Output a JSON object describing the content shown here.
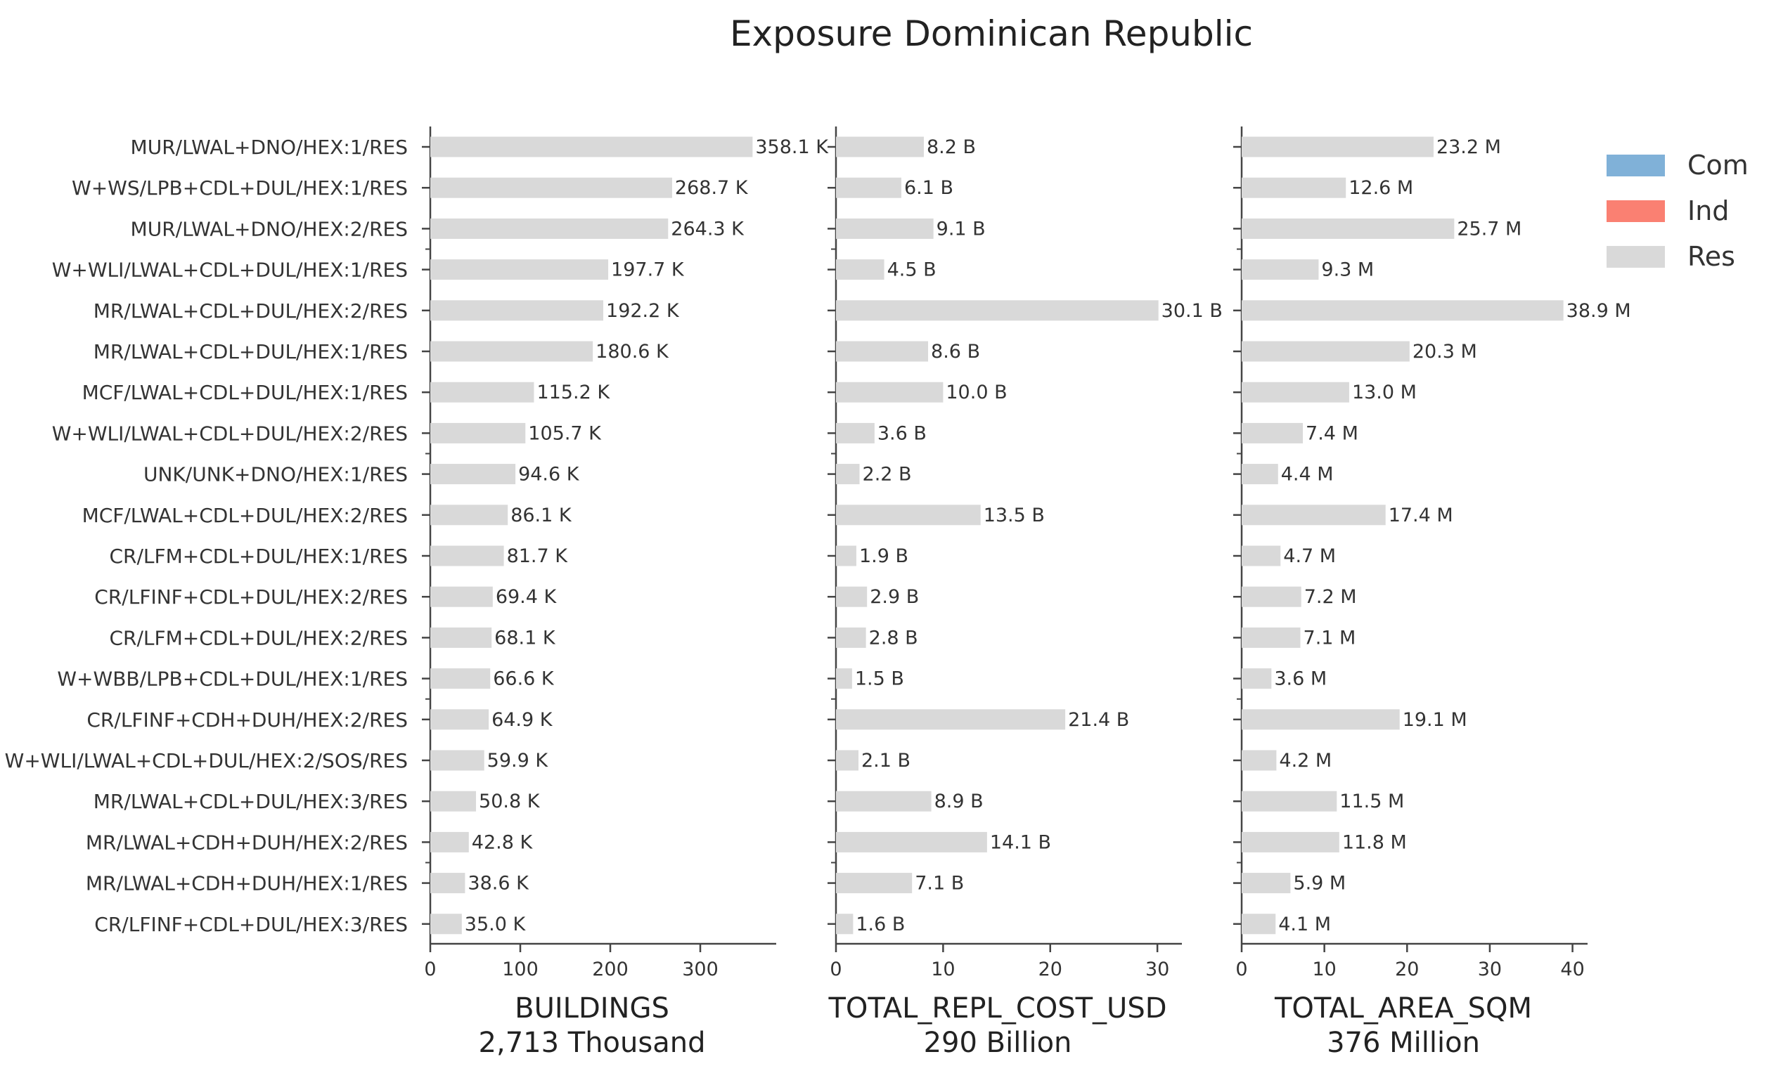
{
  "chart_data": {
    "type": "bar",
    "title": "Exposure Dominican Republic",
    "categories": [
      "MUR/LWAL+DNO/HEX:1/RES",
      "W+WS/LPB+CDL+DUL/HEX:1/RES",
      "MUR/LWAL+DNO/HEX:2/RES",
      "W+WLI/LWAL+CDL+DUL/HEX:1/RES",
      "MR/LWAL+CDL+DUL/HEX:2/RES",
      "MR/LWAL+CDL+DUL/HEX:1/RES",
      "MCF/LWAL+CDL+DUL/HEX:1/RES",
      "W+WLI/LWAL+CDL+DUL/HEX:2/RES",
      "UNK/UNK+DNO/HEX:1/RES",
      "MCF/LWAL+CDL+DUL/HEX:2/RES",
      "CR/LFM+CDL+DUL/HEX:1/RES",
      "CR/LFINF+CDL+DUL/HEX:2/RES",
      "CR/LFM+CDL+DUL/HEX:2/RES",
      "W+WBB/LPB+CDL+DUL/HEX:1/RES",
      "CR/LFINF+CDH+DUH/HEX:2/RES",
      "W+WLI/LWAL+CDL+DUL/HEX:2/SOS/RES",
      "MR/LWAL+CDL+DUL/HEX:3/RES",
      "MR/LWAL+CDH+DUH/HEX:2/RES",
      "MR/LWAL+CDH+DUH/HEX:1/RES",
      "CR/LFINF+CDL+DUL/HEX:3/RES"
    ],
    "panels": [
      {
        "metric": "BUILDINGS",
        "total": "2,713 Thousand",
        "xlim": [
          0,
          375
        ],
        "ticks": [
          0,
          100,
          200,
          300
        ],
        "values": [
          358.1,
          268.7,
          264.3,
          197.7,
          192.2,
          180.6,
          115.2,
          105.7,
          94.6,
          86.1,
          81.7,
          69.4,
          68.1,
          66.6,
          64.9,
          59.9,
          50.8,
          42.8,
          38.6,
          35.0
        ],
        "labels": [
          "358.1 K",
          "268.7 K",
          "264.3 K",
          "197.7 K",
          "192.2 K",
          "180.6 K",
          "115.2 K",
          "105.7 K",
          "94.6 K",
          "86.1 K",
          "81.7 K",
          "69.4 K",
          "68.1 K",
          "66.6 K",
          "64.9 K",
          "59.9 K",
          "50.8 K",
          "42.8 K",
          "38.6 K",
          "35.0 K"
        ]
      },
      {
        "metric": "TOTAL_REPL_COST_USD",
        "total": "290 Billion",
        "xlim": [
          0,
          31.5
        ],
        "ticks": [
          0,
          10,
          20,
          30
        ],
        "values": [
          8.2,
          6.1,
          9.1,
          4.5,
          30.1,
          8.6,
          10.0,
          3.6,
          2.2,
          13.5,
          1.9,
          2.9,
          2.8,
          1.5,
          21.4,
          2.1,
          8.9,
          14.1,
          7.1,
          1.6
        ],
        "labels": [
          "8.2 B",
          "6.1 B",
          "9.1 B",
          "4.5 B",
          "30.1 B",
          "8.6 B",
          "10.0 B",
          "3.6 B",
          "2.2 B",
          "13.5 B",
          "1.9 B",
          "2.9 B",
          "2.8 B",
          "1.5 B",
          "21.4 B",
          "2.1 B",
          "8.9 B",
          "14.1 B",
          "7.1 B",
          "1.6 B"
        ]
      },
      {
        "metric": "TOTAL_AREA_SQM",
        "total": "376 Million",
        "xlim": [
          0,
          40.8
        ],
        "ticks": [
          0,
          10,
          20,
          30,
          40
        ],
        "values": [
          23.2,
          12.6,
          25.7,
          9.3,
          38.9,
          20.3,
          13.0,
          7.4,
          4.4,
          17.4,
          4.7,
          7.2,
          7.1,
          3.6,
          19.1,
          4.2,
          11.5,
          11.8,
          5.9,
          4.1
        ],
        "labels": [
          "23.2 M",
          "12.6 M",
          "25.7 M",
          "9.3 M",
          "38.9 M",
          "20.3 M",
          "13.0 M",
          "7.4 M",
          "4.4 M",
          "17.4 M",
          "4.7 M",
          "7.2 M",
          "7.1 M",
          "3.6 M",
          "19.1 M",
          "4.2 M",
          "11.5 M",
          "11.8 M",
          "5.9 M",
          "4.1 M"
        ]
      }
    ],
    "legend": {
      "placement": "top-right",
      "entries": [
        {
          "name": "Com",
          "color": "#80b1d8"
        },
        {
          "name": "Ind",
          "color": "#fa8072"
        },
        {
          "name": "Res",
          "color": "#d9d9d9"
        }
      ]
    },
    "grid": false
  }
}
